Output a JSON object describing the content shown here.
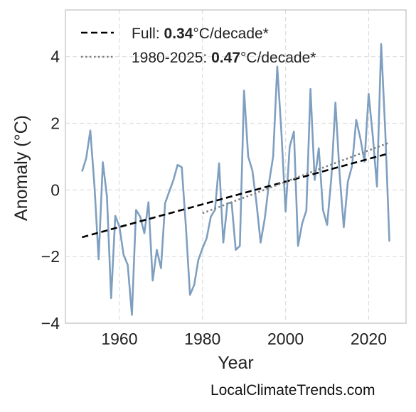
{
  "chart_data": {
    "type": "line",
    "xlabel": "Year",
    "ylabel": "Anomaly (°C)",
    "xlim": [
      1947,
      2029
    ],
    "ylim": [
      -4,
      5.4
    ],
    "xticks": [
      1960,
      1980,
      2000,
      2020
    ],
    "yticks": [
      -4,
      -2,
      0,
      2,
      4
    ],
    "ytick_labels": [
      "−4",
      "−2",
      "0",
      "2",
      "4"
    ],
    "grid": true,
    "legend_position": "top-left",
    "colors": {
      "series": "#7f9fc0",
      "trend_full": "#000000",
      "trend_recent": "#808080",
      "frame": "#cccccc",
      "grid": "#dddddd"
    },
    "series": [
      {
        "x": [
          1951,
          1952,
          1953,
          1954,
          1955,
          1956,
          1957,
          1958,
          1959,
          1960,
          1961,
          1962,
          1963,
          1964,
          1965,
          1966,
          1967,
          1968,
          1969,
          1970,
          1971,
          1972,
          1973,
          1974,
          1975,
          1976,
          1977,
          1978,
          1979,
          1980,
          1981,
          1982,
          1983,
          1984,
          1985,
          1986,
          1987,
          1988,
          1989,
          1990,
          1991,
          1992,
          1993,
          1994,
          1995,
          1996,
          1997,
          1998,
          1999,
          2000,
          2001,
          2002,
          2003,
          2004,
          2005,
          2006,
          2007,
          2008,
          2009,
          2010,
          2011,
          2012,
          2013,
          2014,
          2015,
          2016,
          2017,
          2018,
          2019,
          2020,
          2021,
          2022,
          2023,
          2024,
          2025
        ],
        "y": [
          0.55,
          0.95,
          1.78,
          0.1,
          -2.08,
          0.83,
          -0.2,
          -3.25,
          -0.78,
          -1.1,
          -1.95,
          -2.25,
          -3.75,
          -0.6,
          -0.8,
          -1.3,
          -0.37,
          -2.72,
          -1.8,
          -2.35,
          -0.4,
          -0.05,
          0.3,
          0.75,
          0.68,
          -1.1,
          -3.15,
          -2.85,
          -2.1,
          -1.75,
          -1.45,
          -0.8,
          -0.6,
          0.8,
          -1.58,
          -0.4,
          -0.38,
          -1.8,
          -1.68,
          2.98,
          1.0,
          0.58,
          -0.4,
          -1.58,
          -0.85,
          0.2,
          1.0,
          3.7,
          1.7,
          -0.65,
          1.3,
          1.75,
          -1.68,
          -1.0,
          -0.62,
          3.03,
          0.3,
          1.25,
          -0.6,
          -1.05,
          0.35,
          2.62,
          0.5,
          -1.12,
          0.25,
          0.72,
          2.1,
          1.55,
          0.85,
          2.88,
          1.6,
          0.1,
          4.38,
          1.75,
          -1.55
        ]
      }
    ],
    "trends": [
      {
        "label_prefix": "Full: ",
        "label_value": "0.34",
        "label_suffix": "°C/decade*",
        "style": "dashed",
        "x": [
          1951,
          2025
        ],
        "y": [
          -1.42,
          1.1
        ]
      },
      {
        "label_prefix": "1980-2025: ",
        "label_value": "0.47",
        "label_suffix": "°C/decade*",
        "style": "dotted",
        "x": [
          1980,
          2025
        ],
        "y": [
          -0.7,
          1.42
        ]
      }
    ]
  },
  "watermark": "LocalClimateTrends.com"
}
